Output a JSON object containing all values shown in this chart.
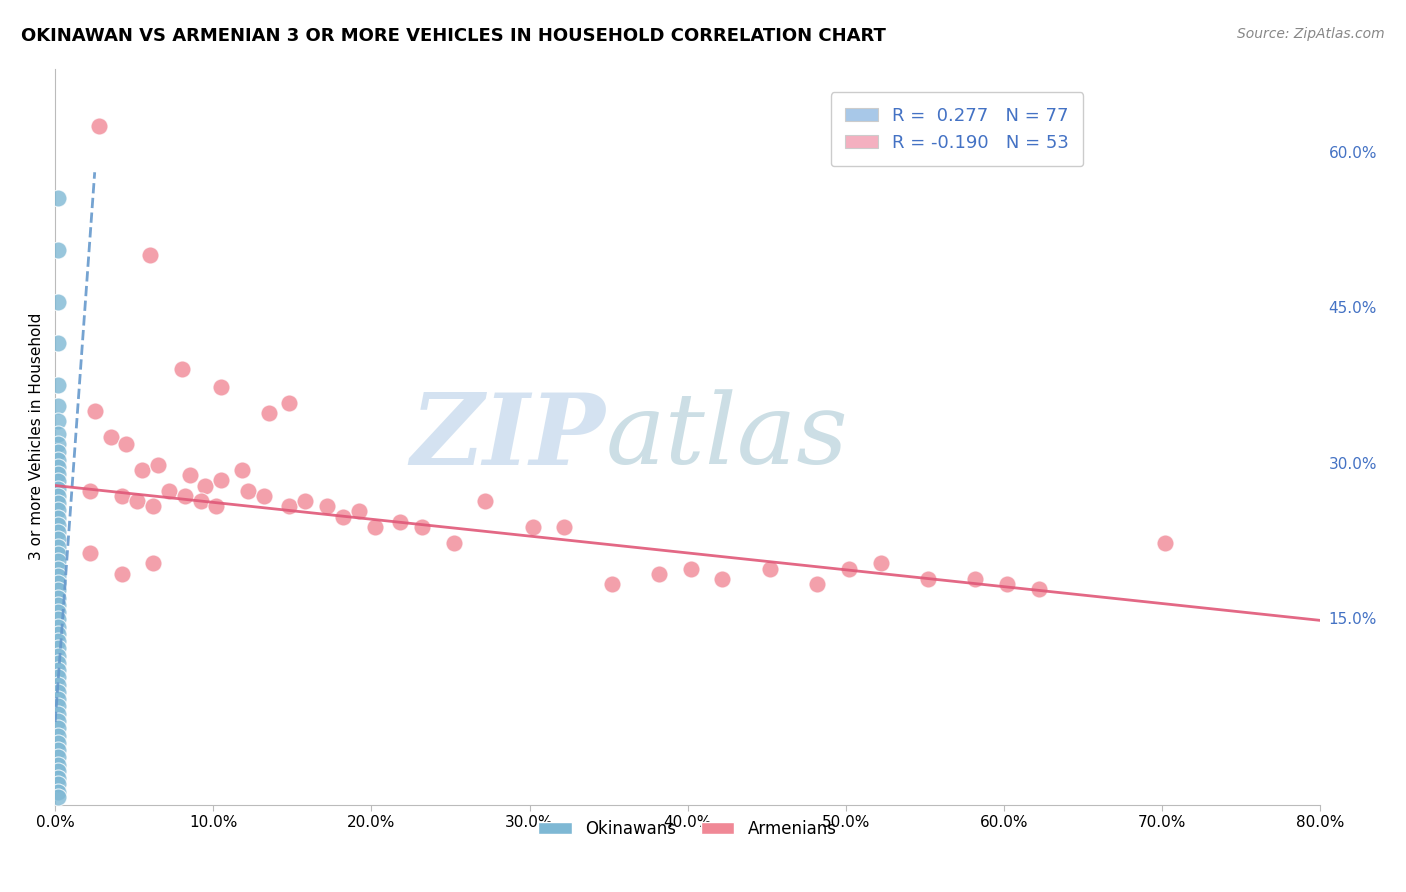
{
  "title": "OKINAWAN VS ARMENIAN 3 OR MORE VEHICLES IN HOUSEHOLD CORRELATION CHART",
  "source": "Source: ZipAtlas.com",
  "ylabel_label": "3 or more Vehicles in Household",
  "right_yticks": [
    "60.0%",
    "45.0%",
    "30.0%",
    "15.0%"
  ],
  "right_ytick_vals": [
    0.6,
    0.45,
    0.3,
    0.15
  ],
  "xlim": [
    0.0,
    0.8
  ],
  "ylim": [
    -0.03,
    0.68
  ],
  "okinawan_points": [
    [
      0.002,
      0.555
    ],
    [
      0.002,
      0.505
    ],
    [
      0.002,
      0.455
    ],
    [
      0.002,
      0.415
    ],
    [
      0.002,
      0.375
    ],
    [
      0.002,
      0.355
    ],
    [
      0.002,
      0.34
    ],
    [
      0.002,
      0.328
    ],
    [
      0.002,
      0.318
    ],
    [
      0.002,
      0.31
    ],
    [
      0.002,
      0.303
    ],
    [
      0.002,
      0.296
    ],
    [
      0.002,
      0.289
    ],
    [
      0.002,
      0.282
    ],
    [
      0.002,
      0.275
    ],
    [
      0.002,
      0.268
    ],
    [
      0.002,
      0.261
    ],
    [
      0.002,
      0.254
    ],
    [
      0.002,
      0.247
    ],
    [
      0.002,
      0.24
    ],
    [
      0.002,
      0.233
    ],
    [
      0.002,
      0.226
    ],
    [
      0.002,
      0.219
    ],
    [
      0.002,
      0.212
    ],
    [
      0.002,
      0.205
    ],
    [
      0.002,
      0.198
    ],
    [
      0.002,
      0.191
    ],
    [
      0.002,
      0.184
    ],
    [
      0.002,
      0.177
    ],
    [
      0.002,
      0.17
    ],
    [
      0.002,
      0.163
    ],
    [
      0.002,
      0.156
    ],
    [
      0.002,
      0.149
    ],
    [
      0.002,
      0.142
    ],
    [
      0.002,
      0.135
    ],
    [
      0.002,
      0.128
    ],
    [
      0.002,
      0.121
    ],
    [
      0.002,
      0.114
    ],
    [
      0.002,
      0.107
    ],
    [
      0.002,
      0.1
    ],
    [
      0.002,
      0.093
    ],
    [
      0.002,
      0.086
    ],
    [
      0.002,
      0.079
    ],
    [
      0.002,
      0.072
    ],
    [
      0.002,
      0.065
    ],
    [
      0.002,
      0.058
    ],
    [
      0.002,
      0.051
    ],
    [
      0.002,
      0.044
    ],
    [
      0.002,
      0.037
    ],
    [
      0.002,
      0.03
    ],
    [
      0.002,
      0.023
    ],
    [
      0.002,
      0.016
    ],
    [
      0.002,
      0.009
    ],
    [
      0.002,
      0.003
    ],
    [
      0.002,
      -0.004
    ],
    [
      0.002,
      -0.01
    ],
    [
      0.002,
      -0.017
    ],
    [
      0.002,
      -0.022
    ]
  ],
  "armenian_points": [
    [
      0.028,
      0.625
    ],
    [
      0.06,
      0.5
    ],
    [
      0.08,
      0.39
    ],
    [
      0.025,
      0.35
    ],
    [
      0.035,
      0.325
    ],
    [
      0.045,
      0.318
    ],
    [
      0.105,
      0.373
    ],
    [
      0.135,
      0.348
    ],
    [
      0.148,
      0.358
    ],
    [
      0.055,
      0.293
    ],
    [
      0.065,
      0.298
    ],
    [
      0.085,
      0.288
    ],
    [
      0.095,
      0.278
    ],
    [
      0.105,
      0.283
    ],
    [
      0.118,
      0.293
    ],
    [
      0.022,
      0.273
    ],
    [
      0.042,
      0.268
    ],
    [
      0.052,
      0.263
    ],
    [
      0.062,
      0.258
    ],
    [
      0.072,
      0.273
    ],
    [
      0.082,
      0.268
    ],
    [
      0.092,
      0.263
    ],
    [
      0.102,
      0.258
    ],
    [
      0.122,
      0.273
    ],
    [
      0.132,
      0.268
    ],
    [
      0.148,
      0.258
    ],
    [
      0.158,
      0.263
    ],
    [
      0.172,
      0.258
    ],
    [
      0.182,
      0.248
    ],
    [
      0.192,
      0.253
    ],
    [
      0.202,
      0.238
    ],
    [
      0.218,
      0.243
    ],
    [
      0.232,
      0.238
    ],
    [
      0.252,
      0.223
    ],
    [
      0.272,
      0.263
    ],
    [
      0.302,
      0.238
    ],
    [
      0.322,
      0.238
    ],
    [
      0.352,
      0.183
    ],
    [
      0.382,
      0.193
    ],
    [
      0.402,
      0.198
    ],
    [
      0.422,
      0.188
    ],
    [
      0.452,
      0.198
    ],
    [
      0.482,
      0.183
    ],
    [
      0.502,
      0.198
    ],
    [
      0.522,
      0.203
    ],
    [
      0.552,
      0.188
    ],
    [
      0.582,
      0.188
    ],
    [
      0.602,
      0.183
    ],
    [
      0.622,
      0.178
    ],
    [
      0.702,
      0.223
    ],
    [
      0.022,
      0.213
    ],
    [
      0.042,
      0.193
    ],
    [
      0.062,
      0.203
    ]
  ],
  "okinawan_color": "#7EB8D4",
  "armenian_color": "#F08896",
  "okinawan_line_color": "#6699CC",
  "armenian_line_color": "#E05878",
  "blue_color": "#4472C4",
  "legend_text_color": "#4472C4",
  "grid_color": "#CCCCCC",
  "background_color": "#FFFFFF",
  "ok_trend_x0": 0.0,
  "ok_trend_y0": 0.05,
  "ok_trend_x1": 0.025,
  "ok_trend_y1": 0.58,
  "arm_trend_x0": 0.0,
  "arm_trend_y0": 0.278,
  "arm_trend_x1": 0.8,
  "arm_trend_y1": 0.148
}
